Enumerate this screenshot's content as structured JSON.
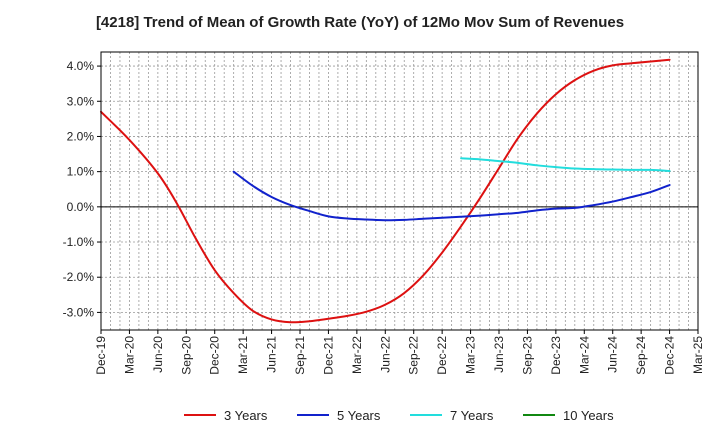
{
  "chart_data": {
    "type": "line",
    "title": "[4218]  Trend of Mean of Growth Rate (YoY) of 12Mo Mov Sum of Revenues",
    "xlabel": "",
    "ylabel": "",
    "ylim": [
      -3.5,
      4.4
    ],
    "y_ticks": [
      -3.0,
      -2.0,
      -1.0,
      0.0,
      1.0,
      2.0,
      3.0,
      4.0
    ],
    "y_tick_labels": [
      "-3.0%",
      "-2.0%",
      "-1.0%",
      "0.0%",
      "1.0%",
      "2.0%",
      "3.0%",
      "4.0%"
    ],
    "x_tick_labels": [
      "Dec-19",
      "Mar-20",
      "Jun-20",
      "Sep-20",
      "Dec-20",
      "Mar-21",
      "Jun-21",
      "Sep-21",
      "Dec-21",
      "Mar-22",
      "Jun-22",
      "Sep-22",
      "Dec-22",
      "Mar-23",
      "Jun-23",
      "Sep-23",
      "Dec-23",
      "Mar-24",
      "Jun-24",
      "Sep-24",
      "Dec-24",
      "Mar-25"
    ],
    "x_index_max": 63,
    "grid": true,
    "legend_position": "bottom",
    "series": [
      {
        "name": "3 Years",
        "color": "#dd1111",
        "points": [
          [
            0,
            2.7
          ],
          [
            3,
            1.9
          ],
          [
            6,
            0.95
          ],
          [
            8,
            0.1
          ],
          [
            10,
            -0.9
          ],
          [
            12,
            -1.8
          ],
          [
            14,
            -2.45
          ],
          [
            16,
            -2.95
          ],
          [
            18,
            -3.2
          ],
          [
            20,
            -3.28
          ],
          [
            22,
            -3.25
          ],
          [
            24,
            -3.18
          ],
          [
            26,
            -3.1
          ],
          [
            28,
            -2.98
          ],
          [
            30,
            -2.78
          ],
          [
            32,
            -2.45
          ],
          [
            34,
            -1.95
          ],
          [
            36,
            -1.3
          ],
          [
            38,
            -0.55
          ],
          [
            40,
            0.25
          ],
          [
            42,
            1.1
          ],
          [
            44,
            1.95
          ],
          [
            46,
            2.65
          ],
          [
            48,
            3.2
          ],
          [
            50,
            3.6
          ],
          [
            52,
            3.87
          ],
          [
            54,
            4.02
          ],
          [
            56,
            4.08
          ],
          [
            58,
            4.13
          ],
          [
            60,
            4.18
          ]
        ]
      },
      {
        "name": "5 Years",
        "color": "#1122cc",
        "points": [
          [
            14,
            1.0
          ],
          [
            16,
            0.6
          ],
          [
            18,
            0.28
          ],
          [
            20,
            0.05
          ],
          [
            22,
            -0.12
          ],
          [
            24,
            -0.27
          ],
          [
            26,
            -0.33
          ],
          [
            28,
            -0.36
          ],
          [
            30,
            -0.38
          ],
          [
            32,
            -0.37
          ],
          [
            34,
            -0.34
          ],
          [
            36,
            -0.31
          ],
          [
            38,
            -0.28
          ],
          [
            40,
            -0.25
          ],
          [
            42,
            -0.21
          ],
          [
            44,
            -0.17
          ],
          [
            46,
            -0.1
          ],
          [
            48,
            -0.05
          ],
          [
            50,
            -0.03
          ],
          [
            52,
            0.05
          ],
          [
            54,
            0.15
          ],
          [
            56,
            0.28
          ],
          [
            58,
            0.42
          ],
          [
            60,
            0.62
          ]
        ]
      },
      {
        "name": "7 Years",
        "color": "#22dddd",
        "points": [
          [
            38,
            1.38
          ],
          [
            40,
            1.35
          ],
          [
            42,
            1.3
          ],
          [
            44,
            1.25
          ],
          [
            46,
            1.18
          ],
          [
            48,
            1.13
          ],
          [
            50,
            1.09
          ],
          [
            52,
            1.07
          ],
          [
            54,
            1.06
          ],
          [
            56,
            1.05
          ],
          [
            58,
            1.05
          ],
          [
            60,
            1.02
          ]
        ]
      },
      {
        "name": "10 Years",
        "color": "#118811",
        "points": []
      }
    ]
  }
}
